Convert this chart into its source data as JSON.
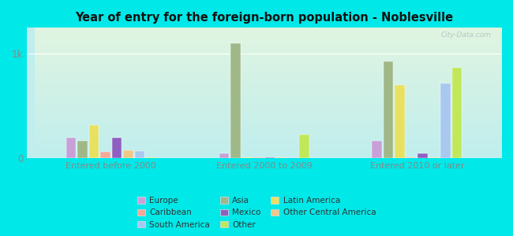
{
  "title": "Year of entry for the foreign-born population - Noblesville",
  "groups": [
    "Entered before 2000",
    "Entered 2000 to 2009",
    "Entered 2010 or later"
  ],
  "categories": [
    "Europe",
    "Asia",
    "Latin America",
    "Caribbean",
    "Mexico",
    "Other Central America",
    "South America",
    "Other"
  ],
  "colors": [
    "#c8a0d8",
    "#a0b888",
    "#e8e060",
    "#f4a898",
    "#9060c0",
    "#f0c888",
    "#a8c8f0",
    "#c0e858"
  ],
  "values": [
    [
      200,
      170,
      320,
      60,
      200,
      80,
      70,
      5
    ],
    [
      50,
      1100,
      5,
      5,
      5,
      5,
      5,
      230
    ],
    [
      170,
      930,
      700,
      5,
      50,
      5,
      720,
      870
    ]
  ],
  "ylim": [
    0,
    1250
  ],
  "yticks": [
    0,
    1000
  ],
  "ytick_labels": [
    "0",
    "1k"
  ],
  "bg_color": "#00e8e8",
  "plot_bg_top": "#e0f5e0",
  "plot_bg_bottom": "#c8eeee",
  "tick_color": "#888888",
  "title_color": "#111111",
  "legend_order": [
    0,
    3,
    6,
    1,
    4,
    7,
    2,
    5
  ],
  "legend_ncol": 3,
  "watermark": "City-Data.com"
}
